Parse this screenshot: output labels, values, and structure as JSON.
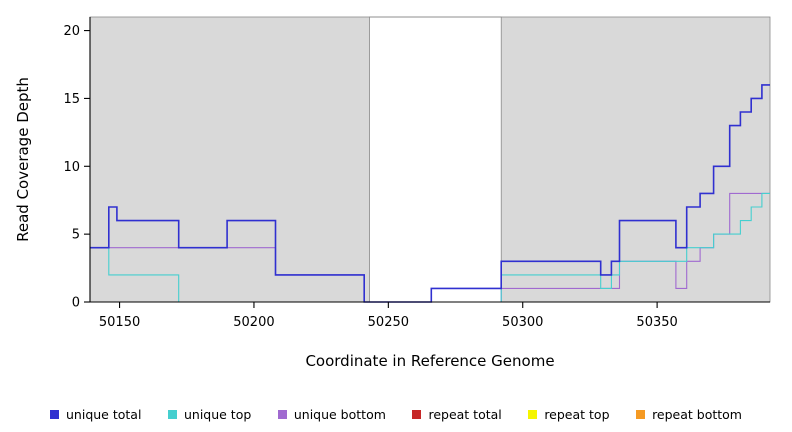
{
  "chart_data": {
    "type": "line",
    "title": "",
    "xlabel": "Coordinate in Reference Genome",
    "ylabel": "Read Coverage Depth",
    "xlim": [
      50139,
      50392
    ],
    "ylim": [
      0,
      21
    ],
    "xticks": [
      50150,
      50200,
      50250,
      50300,
      50350
    ],
    "yticks": [
      0,
      5,
      10,
      15,
      20
    ],
    "grid": false,
    "legend_position": "bottom",
    "plot_bg": "#d9d9d9",
    "highlight_region": {
      "x0": 50243,
      "x1": 50292,
      "color": "#ffffff"
    },
    "series": [
      {
        "name": "unique total",
        "color": "#3030d0",
        "step": true,
        "points": [
          [
            50139,
            4
          ],
          [
            50146,
            7
          ],
          [
            50149,
            6
          ],
          [
            50172,
            4
          ],
          [
            50190,
            6
          ],
          [
            50208,
            2
          ],
          [
            50241,
            0
          ],
          [
            50266,
            1
          ],
          [
            50292,
            3
          ],
          [
            50329,
            2
          ],
          [
            50333,
            3
          ],
          [
            50336,
            6
          ],
          [
            50357,
            4
          ],
          [
            50361,
            7
          ],
          [
            50366,
            8
          ],
          [
            50371,
            10
          ],
          [
            50377,
            13
          ],
          [
            50381,
            14
          ],
          [
            50385,
            15
          ],
          [
            50389,
            16
          ]
        ]
      },
      {
        "name": "unique top",
        "color": "#45cfcf",
        "step": true,
        "points": [
          [
            50139,
            4
          ],
          [
            50146,
            2
          ],
          [
            50172,
            0
          ],
          [
            50292,
            2
          ],
          [
            50329,
            1
          ],
          [
            50333,
            2
          ],
          [
            50336,
            3
          ],
          [
            50361,
            4
          ],
          [
            50371,
            5
          ],
          [
            50381,
            6
          ],
          [
            50385,
            7
          ],
          [
            50389,
            8
          ]
        ]
      },
      {
        "name": "unique bottom",
        "color": "#a06ad0",
        "step": true,
        "points": [
          [
            50139,
            4
          ],
          [
            50208,
            2
          ],
          [
            50241,
            0
          ],
          [
            50292,
            1
          ],
          [
            50336,
            3
          ],
          [
            50357,
            1
          ],
          [
            50361,
            3
          ],
          [
            50366,
            4
          ],
          [
            50371,
            5
          ],
          [
            50377,
            8
          ]
        ]
      },
      {
        "name": "repeat total",
        "color": "#c62828",
        "step": true,
        "points": [
          [
            50139,
            0
          ]
        ]
      },
      {
        "name": "repeat top",
        "color": "#f5f500",
        "step": true,
        "points": [
          [
            50139,
            0
          ]
        ]
      },
      {
        "name": "repeat bottom",
        "color": "#f59a23",
        "step": true,
        "points": [
          [
            50139,
            0
          ]
        ]
      }
    ]
  }
}
